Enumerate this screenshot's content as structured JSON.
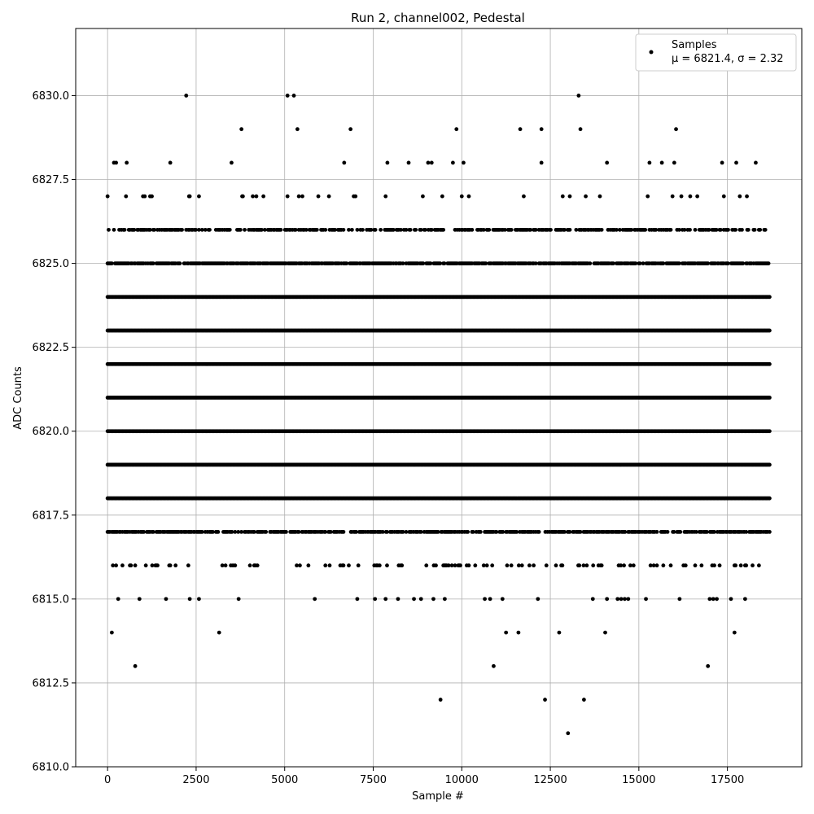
{
  "chart_data": {
    "type": "scatter",
    "title": "Run 2, channel002, Pedestal",
    "xlabel": "Sample #",
    "ylabel": "ADC Counts",
    "xlim": [
      -900,
      19600
    ],
    "ylim": [
      6810.0,
      6832.0
    ],
    "x_ticks": [
      0,
      2500,
      5000,
      7500,
      10000,
      12500,
      15000,
      17500
    ],
    "x_tick_labels": [
      "0",
      "2500",
      "5000",
      "7500",
      "10000",
      "12500",
      "15000",
      "17500"
    ],
    "y_ticks": [
      6810.0,
      6812.5,
      6815.0,
      6817.5,
      6820.0,
      6822.5,
      6825.0,
      6827.5,
      6830.0
    ],
    "y_tick_labels": [
      "6810.0",
      "6812.5",
      "6815.0",
      "6817.5",
      "6820.0",
      "6822.5",
      "6825.0",
      "6827.5",
      "6830.0"
    ],
    "grid": true,
    "legend_position": "top-right",
    "legend_title": "Samples",
    "legend_stats": "μ = 6821.4, σ = 2.32",
    "series": [
      {
        "color": "#000000",
        "points": [
          [
            0,
            6827
          ],
          [
            120,
            6814
          ],
          [
            180,
            6828
          ],
          [
            240,
            6828
          ],
          [
            540,
            6828
          ],
          [
            520,
            6827
          ],
          [
            300,
            6815
          ],
          [
            780,
            6813
          ],
          [
            900,
            6815
          ],
          [
            1000,
            6827
          ],
          [
            1050,
            6827
          ],
          [
            1200,
            6827
          ],
          [
            1250,
            6827
          ],
          [
            1770,
            6828
          ],
          [
            2220,
            6830
          ],
          [
            2300,
            6827
          ],
          [
            2320,
            6827
          ],
          [
            2580,
            6827
          ],
          [
            1650,
            6815
          ],
          [
            2320,
            6815
          ],
          [
            2580,
            6815
          ],
          [
            3150,
            6814
          ],
          [
            3700,
            6815
          ],
          [
            3500,
            6828
          ],
          [
            3780,
            6829
          ],
          [
            3800,
            6827
          ],
          [
            3820,
            6827
          ],
          [
            4100,
            6827
          ],
          [
            4200,
            6827
          ],
          [
            4400,
            6827
          ],
          [
            5080,
            6830
          ],
          [
            5260,
            6830
          ],
          [
            5080,
            6827
          ],
          [
            5360,
            6829
          ],
          [
            5400,
            6827
          ],
          [
            5500,
            6827
          ],
          [
            5850,
            6815
          ],
          [
            5950,
            6827
          ],
          [
            6250,
            6827
          ],
          [
            6680,
            6828
          ],
          [
            6860,
            6829
          ],
          [
            6950,
            6827
          ],
          [
            7000,
            6827
          ],
          [
            7050,
            6815
          ],
          [
            7550,
            6815
          ],
          [
            7850,
            6815
          ],
          [
            7900,
            6828
          ],
          [
            7850,
            6827
          ],
          [
            8200,
            6815
          ],
          [
            8500,
            6828
          ],
          [
            8650,
            6815
          ],
          [
            8850,
            6815
          ],
          [
            8900,
            6827
          ],
          [
            9050,
            6828
          ],
          [
            9150,
            6828
          ],
          [
            9200,
            6815
          ],
          [
            9400,
            6812
          ],
          [
            9450,
            6827
          ],
          [
            9520,
            6815
          ],
          [
            9750,
            6828
          ],
          [
            9850,
            6829
          ],
          [
            10000,
            6827
          ],
          [
            10050,
            6828
          ],
          [
            10200,
            6827
          ],
          [
            10650,
            6815
          ],
          [
            10800,
            6815
          ],
          [
            10900,
            6813
          ],
          [
            11150,
            6815
          ],
          [
            11250,
            6814
          ],
          [
            11600,
            6814
          ],
          [
            11650,
            6829
          ],
          [
            11750,
            6827
          ],
          [
            12150,
            6815
          ],
          [
            12250,
            6829
          ],
          [
            12250,
            6828
          ],
          [
            12350,
            6812
          ],
          [
            12750,
            6814
          ],
          [
            12850,
            6827
          ],
          [
            13000,
            6811
          ],
          [
            13050,
            6827
          ],
          [
            13300,
            6830
          ],
          [
            13350,
            6829
          ],
          [
            13450,
            6812
          ],
          [
            13500,
            6827
          ],
          [
            13700,
            6815
          ],
          [
            13900,
            6827
          ],
          [
            14050,
            6814
          ],
          [
            14100,
            6828
          ],
          [
            14100,
            6815
          ],
          [
            14400,
            6815
          ],
          [
            14500,
            6815
          ],
          [
            14600,
            6815
          ],
          [
            14700,
            6815
          ],
          [
            15200,
            6815
          ],
          [
            15250,
            6827
          ],
          [
            15300,
            6828
          ],
          [
            15650,
            6828
          ],
          [
            15950,
            6827
          ],
          [
            16000,
            6828
          ],
          [
            16050,
            6829
          ],
          [
            16150,
            6815
          ],
          [
            16200,
            6827
          ],
          [
            16450,
            6827
          ],
          [
            16650,
            6827
          ],
          [
            16950,
            6813
          ],
          [
            17000,
            6815
          ],
          [
            17100,
            6815
          ],
          [
            17200,
            6815
          ],
          [
            17350,
            6828
          ],
          [
            17400,
            6827
          ],
          [
            17600,
            6815
          ],
          [
            17700,
            6814
          ],
          [
            17750,
            6828
          ],
          [
            17850,
            6827
          ],
          [
            18000,
            6815
          ],
          [
            18050,
            6827
          ],
          [
            18300,
            6828
          ]
        ],
        "dense_bands": [
          {
            "y": 6826,
            "from": 0,
            "to": 18600,
            "density": 0.55
          },
          {
            "y": 6825,
            "from": 0,
            "to": 18700,
            "density": 0.8
          },
          {
            "y": 6824,
            "from": 0,
            "to": 18700,
            "density": 1.0
          },
          {
            "y": 6823,
            "from": 0,
            "to": 18700,
            "density": 1.0
          },
          {
            "y": 6822,
            "from": 0,
            "to": 18700,
            "density": 1.0
          },
          {
            "y": 6821,
            "from": 0,
            "to": 18700,
            "density": 1.0
          },
          {
            "y": 6820,
            "from": 0,
            "to": 18700,
            "density": 1.0
          },
          {
            "y": 6819,
            "from": 0,
            "to": 18700,
            "density": 1.0
          },
          {
            "y": 6818,
            "from": 0,
            "to": 18700,
            "density": 1.0
          },
          {
            "y": 6817,
            "from": 0,
            "to": 18700,
            "density": 0.7
          },
          {
            "y": 6816,
            "from": 0,
            "to": 18700,
            "density": 0.15
          }
        ]
      }
    ]
  }
}
